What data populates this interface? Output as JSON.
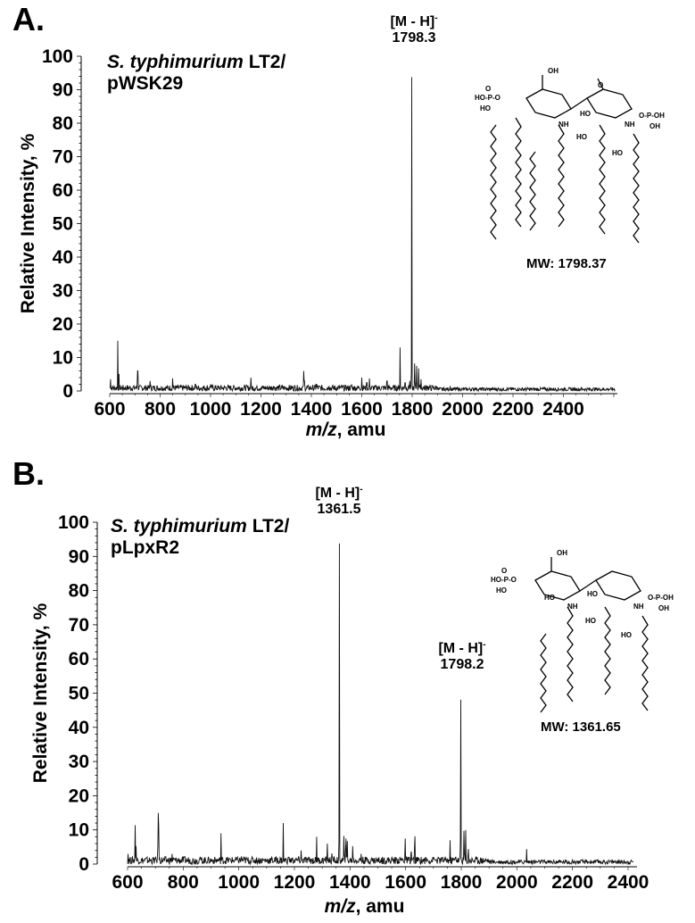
{
  "panels": [
    {
      "id": "A",
      "label": "A.",
      "sample_title_italic": "S. typhimurium",
      "sample_title_rest": " LT2/",
      "sample_title_line2": "pWSK29",
      "peak_annotations": [
        {
          "ion": "[M - H]",
          "charge": "-",
          "mz": "1798.3"
        }
      ],
      "structure_mw": "MW: 1798.37",
      "ylabel": "Relative Intensity, %",
      "xlabel_italic": "m/z",
      "xlabel_rest": ", amu"
    },
    {
      "id": "B",
      "label": "B.",
      "sample_title_italic": "S. typhimurium",
      "sample_title_rest": " LT2/",
      "sample_title_line2": "pLpxR2",
      "peak_annotations": [
        {
          "ion": "[M - H]",
          "charge": "-",
          "mz": "1361.5"
        },
        {
          "ion": "[M - H]",
          "charge": "-",
          "mz": "1798.2"
        }
      ],
      "structure_mw": "MW: 1361.65",
      "ylabel": "Relative Intensity, %",
      "xlabel_italic": "m/z",
      "xlabel_rest": ", amu"
    }
  ],
  "chart_data": [
    {
      "type": "line",
      "title": "A. S. typhimurium LT2/pWSK29",
      "xlabel": "m/z, amu",
      "ylabel": "Relative Intensity, %",
      "xlim": [
        600,
        2615
      ],
      "ylim": [
        0,
        100
      ],
      "xticks": [
        600,
        800,
        1000,
        1200,
        1400,
        1600,
        1800,
        2000,
        2200,
        2400
      ],
      "yticks": [
        0,
        10,
        20,
        30,
        40,
        50,
        60,
        70,
        80,
        90,
        100
      ],
      "grid": false,
      "legend": "none",
      "annotations": [
        {
          "text": "[M - H]- 1798.3",
          "x": 1798.3,
          "y": 100
        }
      ],
      "series": [
        {
          "name": "mass spectrum",
          "peaks_mz": [
            603,
            632,
            636,
            710,
            712,
            760,
            850,
            940,
            1000,
            1160,
            1250,
            1370,
            1372,
            1420,
            1470,
            1560,
            1600,
            1620,
            1630,
            1700,
            1752,
            1772,
            1790,
            1798.3,
            1810,
            1818,
            1826,
            1835,
            1860,
            1900,
            1950,
            2050
          ],
          "peaks_intensity": [
            4,
            15,
            10,
            8,
            6,
            3,
            5,
            4,
            2,
            4,
            2,
            8,
            6,
            4,
            2,
            2,
            4,
            5,
            5,
            6,
            13,
            5,
            4,
            100,
            11,
            10,
            9,
            4,
            3,
            2,
            2,
            1.5
          ],
          "baseline_noise": 1.5
        }
      ]
    },
    {
      "type": "line",
      "title": "B. S. typhimurium LT2/pLpxR2",
      "xlabel": "m/z, amu",
      "ylabel": "Relative Intensity, %",
      "xlim": [
        600,
        2430
      ],
      "ylim": [
        0,
        100
      ],
      "xticks": [
        600,
        800,
        1000,
        1200,
        1400,
        1600,
        1800,
        2000,
        2200,
        2400
      ],
      "yticks": [
        0,
        10,
        20,
        30,
        40,
        50,
        60,
        70,
        80,
        90,
        100
      ],
      "grid": false,
      "legend": "none",
      "annotations": [
        {
          "text": "[M - H]- 1361.5",
          "x": 1361.5,
          "y": 100
        },
        {
          "text": "[M - H]- 1798.2",
          "x": 1798.2,
          "y": 55
        }
      ],
      "series": [
        {
          "name": "mass spectrum",
          "peaks_mz": [
            602,
            627,
            630,
            710,
            712,
            760,
            860,
            936,
            1010,
            1160,
            1180,
            1224,
            1280,
            1318,
            1335,
            1342,
            1361.5,
            1378,
            1385,
            1390,
            1410,
            1440,
            1500,
            1585,
            1598,
            1620,
            1633,
            1700,
            1760,
            1780,
            1798.2,
            1810,
            1816,
            1825,
            2035
          ],
          "peaks_intensity": [
            4,
            13,
            7,
            20,
            11,
            3,
            3,
            9,
            3,
            12,
            4,
            4,
            8,
            8,
            5,
            3,
            100,
            11,
            12,
            9,
            7,
            3,
            2,
            3,
            10,
            7,
            13,
            3,
            7,
            4,
            55,
            13,
            10,
            7,
            5
          ],
          "baseline_noise": 1.8
        }
      ]
    }
  ]
}
